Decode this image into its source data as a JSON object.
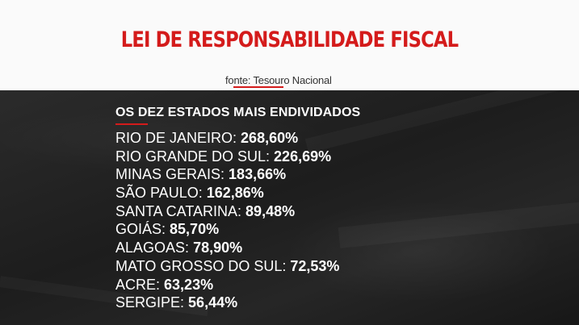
{
  "header": {
    "title": "LEI DE RESPONSABILIDADE FISCAL",
    "source": "fonte: Tesouro Nacional"
  },
  "list": {
    "title": "OS DEZ ESTADOS MAIS ENDIVIDADOS",
    "items": [
      {
        "state": "RIO DE JANEIRO:",
        "value": "268,60%"
      },
      {
        "state": "RIO GRANDE DO SUL:",
        "value": "226,69%"
      },
      {
        "state": "MINAS GERAIS:",
        "value": "183,66%"
      },
      {
        "state": "SÃO PAULO:",
        "value": "162,86%"
      },
      {
        "state": "SANTA CATARINA:",
        "value": "89,48%"
      },
      {
        "state": "GOIÁS:",
        "value": "85,70%"
      },
      {
        "state": "ALAGOAS:",
        "value": "78,90%"
      },
      {
        "state": "MATO GROSSO DO SUL:",
        "value": "72,53%"
      },
      {
        "state": "ACRE:",
        "value": "63,23%"
      },
      {
        "state": "SERGIPE:",
        "value": "56,44%"
      }
    ]
  },
  "colors": {
    "accent": "#d41b1b",
    "panel_top": "#fafafa",
    "panel_bottom": "#1f1f1f",
    "text_light": "#ffffff"
  }
}
